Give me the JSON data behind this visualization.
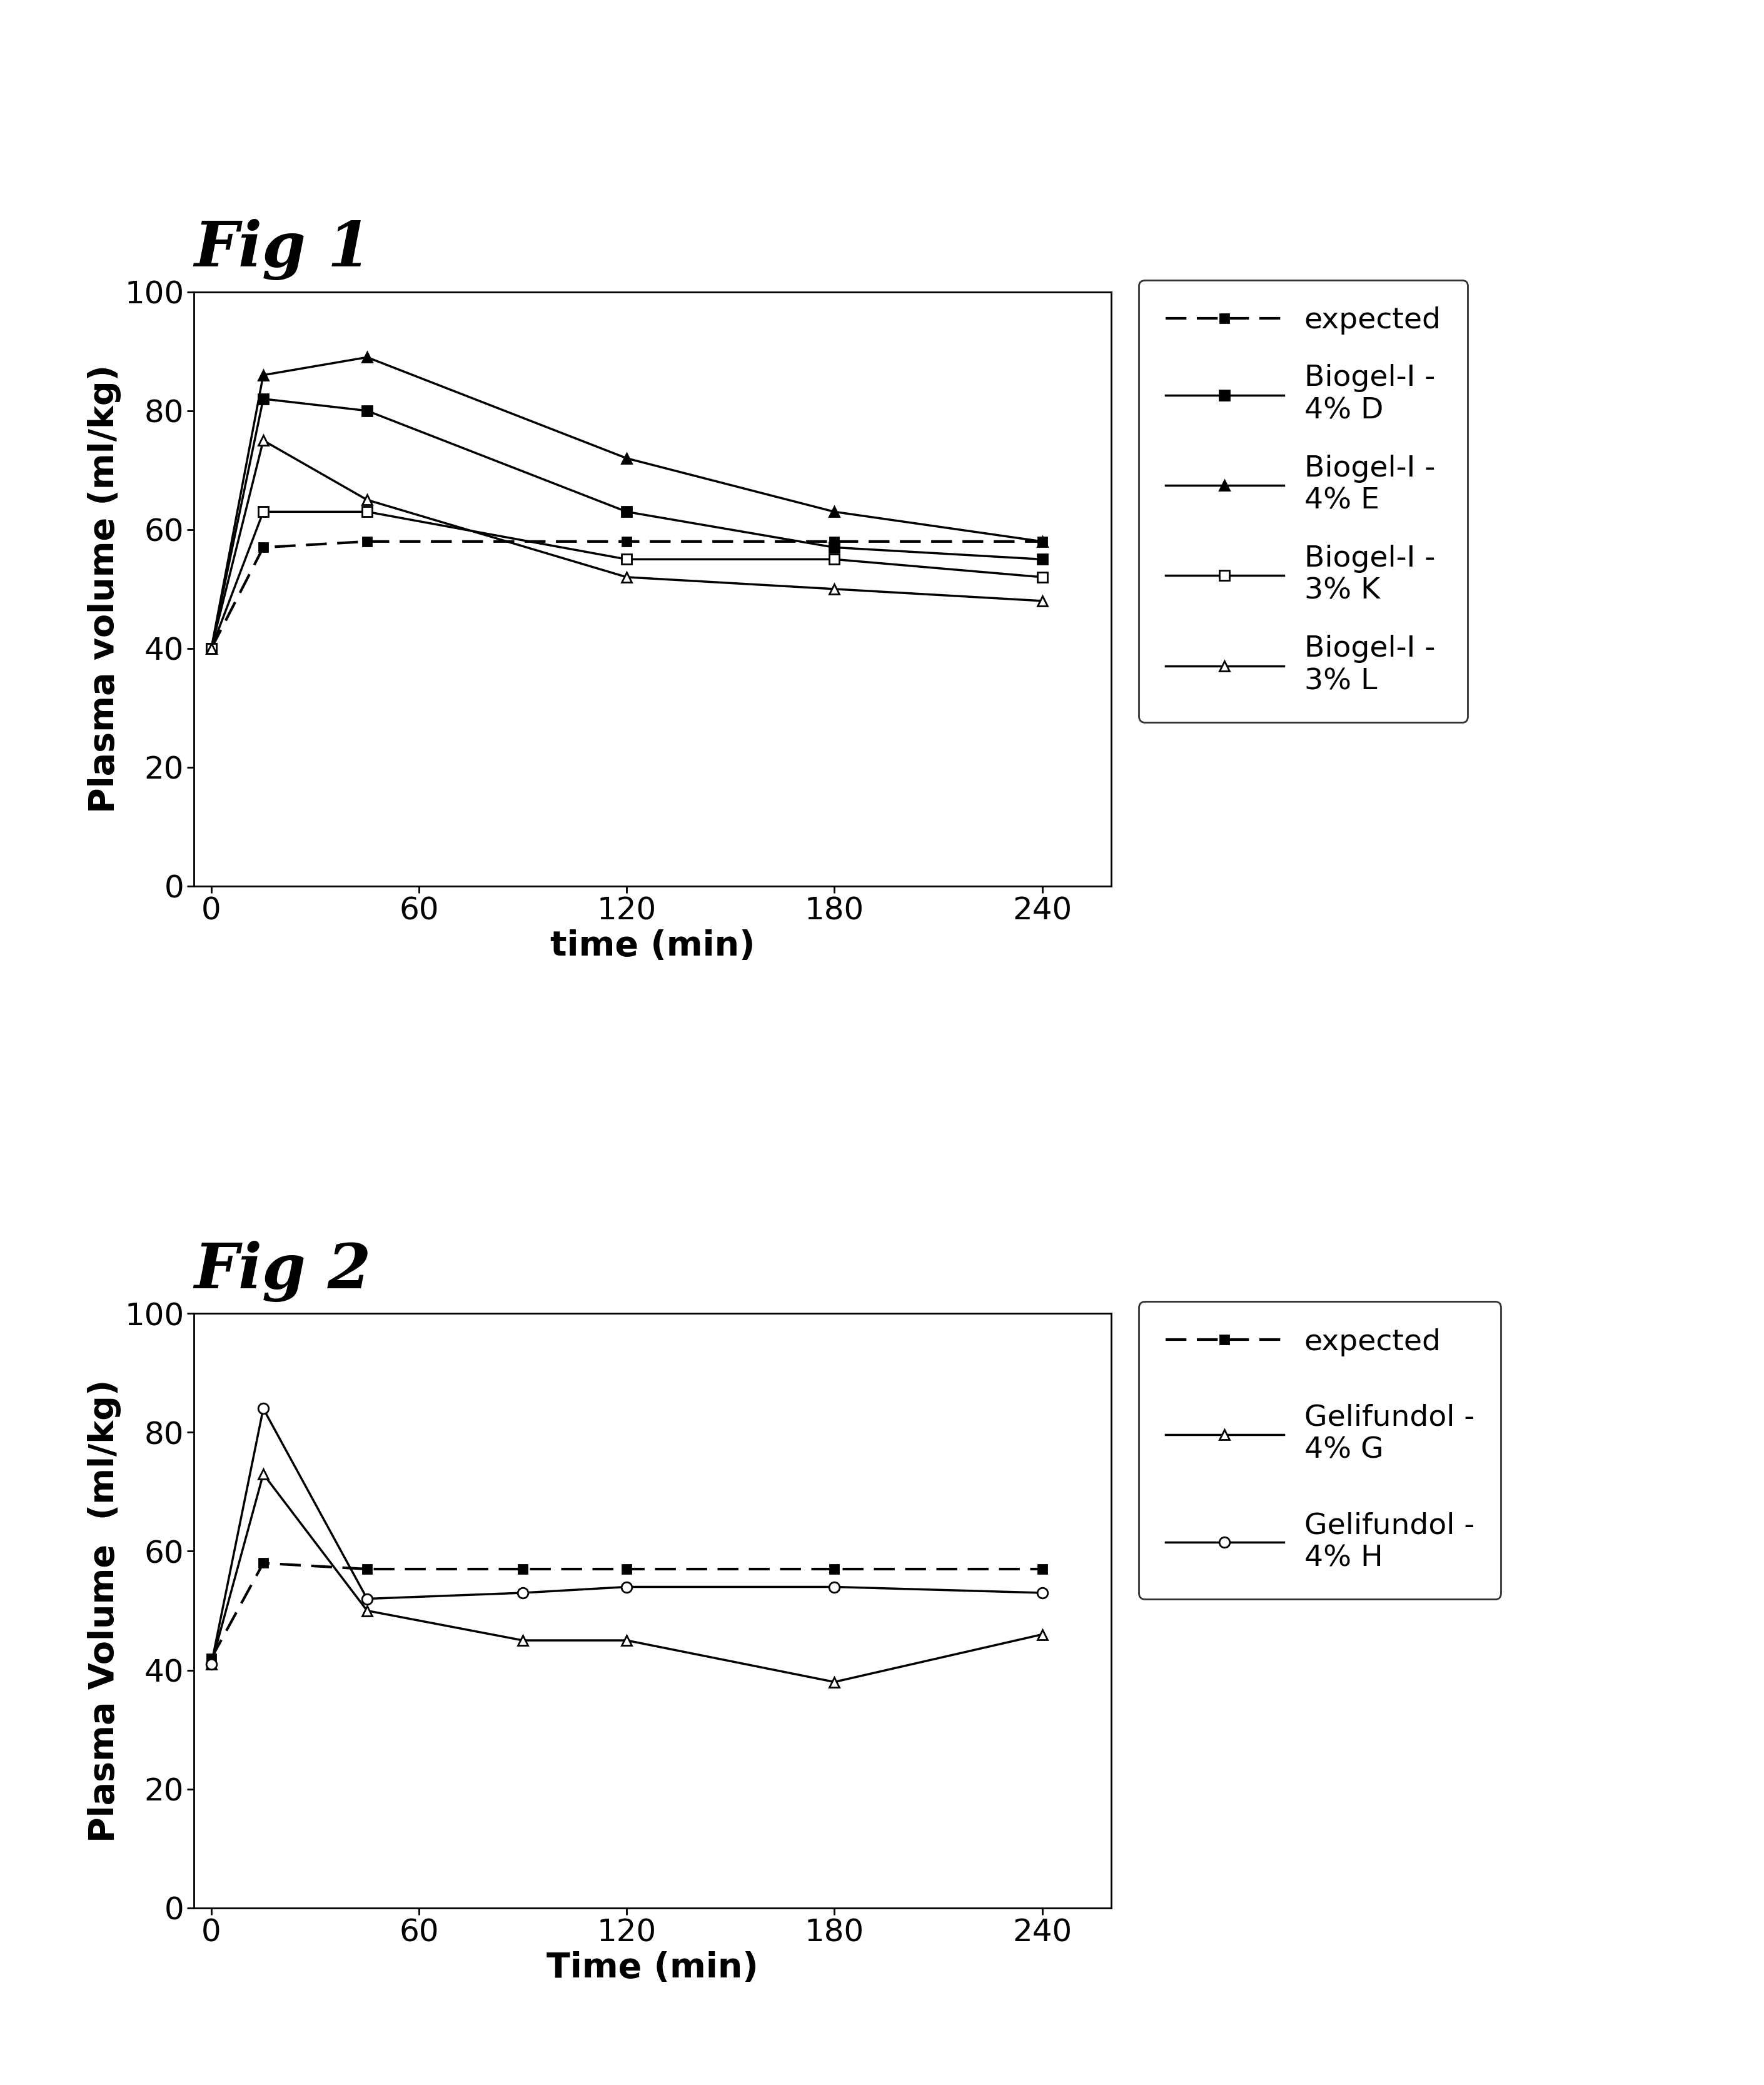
{
  "fig1": {
    "title": "Fig 1",
    "xlabel": "time (min)",
    "ylabel": "Plasma volume (ml/kg)",
    "xlim": [
      -5,
      260
    ],
    "ylim": [
      0,
      100
    ],
    "xticks": [
      0,
      60,
      120,
      180,
      240
    ],
    "yticks": [
      0,
      20,
      40,
      60,
      80,
      100
    ],
    "expected": {
      "x": [
        0,
        15,
        45,
        120,
        180,
        240
      ],
      "y": [
        40,
        57,
        58,
        58,
        58,
        58
      ],
      "label": "expected",
      "color": "#000000",
      "linestyle": "dashed",
      "marker": "s",
      "markersize": 10,
      "linewidth": 3,
      "markerfacecolor": "#000000",
      "dashes": [
        8,
        4
      ]
    },
    "series": [
      {
        "label": "Biogel-I -\n4% D",
        "x": [
          0,
          15,
          45,
          120,
          180,
          240
        ],
        "y": [
          40,
          82,
          80,
          63,
          57,
          55
        ],
        "color": "#000000",
        "linestyle": "solid",
        "marker": "s",
        "markersize": 11,
        "linewidth": 2.5,
        "markerfacecolor": "#000000"
      },
      {
        "label": "Biogel-I -\n4% E",
        "x": [
          0,
          15,
          45,
          120,
          180,
          240
        ],
        "y": [
          40,
          86,
          89,
          72,
          63,
          58
        ],
        "color": "#000000",
        "linestyle": "solid",
        "marker": "^",
        "markersize": 12,
        "linewidth": 2.5,
        "markerfacecolor": "#000000"
      },
      {
        "label": "Biogel-I -\n3% K",
        "x": [
          0,
          15,
          45,
          120,
          180,
          240
        ],
        "y": [
          40,
          63,
          63,
          55,
          55,
          52
        ],
        "color": "#000000",
        "linestyle": "solid",
        "marker": "s",
        "markersize": 11,
        "linewidth": 2.5,
        "markerfacecolor": "#ffffff"
      },
      {
        "label": "Biogel-I -\n3% L",
        "x": [
          0,
          15,
          45,
          120,
          180,
          240
        ],
        "y": [
          40,
          75,
          65,
          52,
          50,
          48
        ],
        "color": "#000000",
        "linestyle": "solid",
        "marker": "^",
        "markersize": 12,
        "linewidth": 2.5,
        "markerfacecolor": "#ffffff"
      }
    ]
  },
  "fig2": {
    "title": "Fig 2",
    "xlabel": "Time (min)",
    "ylabel": "Plasma Volume  (ml/kg)",
    "xlim": [
      -5,
      260
    ],
    "ylim": [
      0,
      100
    ],
    "xticks": [
      0,
      60,
      120,
      180,
      240
    ],
    "yticks": [
      0,
      20,
      40,
      60,
      80,
      100
    ],
    "expected": {
      "x": [
        0,
        15,
        45,
        90,
        120,
        180,
        240
      ],
      "y": [
        42,
        58,
        57,
        57,
        57,
        57,
        57
      ],
      "label": "expected",
      "color": "#000000",
      "linestyle": "dashed",
      "marker": "s",
      "markersize": 10,
      "linewidth": 3,
      "markerfacecolor": "#000000",
      "dashes": [
        8,
        4
      ]
    },
    "series": [
      {
        "label": "Gelifundol -\n4% G",
        "x": [
          0,
          15,
          45,
          90,
          120,
          180,
          240
        ],
        "y": [
          41,
          73,
          50,
          45,
          45,
          38,
          46
        ],
        "color": "#000000",
        "linestyle": "solid",
        "marker": "^",
        "markersize": 12,
        "linewidth": 2.5,
        "markerfacecolor": "#ffffff"
      },
      {
        "label": "Gelifundol -\n4% H",
        "x": [
          0,
          15,
          45,
          90,
          120,
          180,
          240
        ],
        "y": [
          41,
          84,
          52,
          53,
          54,
          54,
          53
        ],
        "color": "#000000",
        "linestyle": "solid",
        "marker": "o",
        "markersize": 12,
        "linewidth": 2.5,
        "markerfacecolor": "#ffffff"
      }
    ]
  },
  "background_color": "#ffffff",
  "fig_title_fontsize": 72,
  "axis_label_fontsize": 40,
  "tick_fontsize": 36,
  "legend_fontsize": 34
}
